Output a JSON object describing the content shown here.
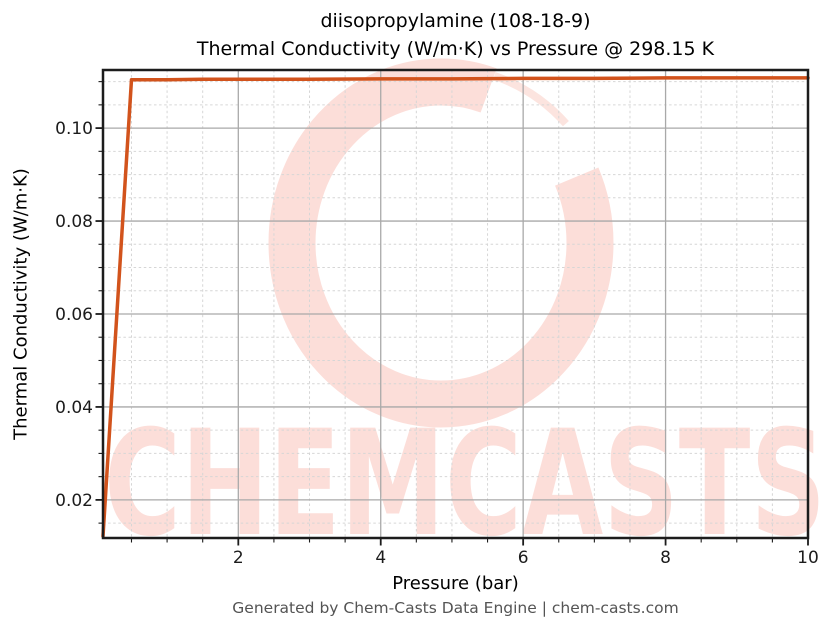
{
  "figure": {
    "title_line1": "diisopropylamine (108-18-9)",
    "title_line2": "Thermal Conductivity (W/m·K) vs Pressure @ 298.15 K",
    "watermark_text": "CHEMCASTS",
    "footer": "Generated by Chem-Casts Data Engine | chem-casts.com"
  },
  "chart_data": {
    "type": "line",
    "title": "diisopropylamine (108-18-9)",
    "subtitle": "Thermal Conductivity (W/m·K) vs Pressure @ 298.15 K",
    "xlabel": "Pressure (bar)",
    "ylabel": "Thermal Conductivity (W/m·K)",
    "xlim": [
      0.1,
      10
    ],
    "ylim": [
      0.0118,
      0.1125
    ],
    "xticks": [
      2,
      4,
      6,
      8,
      10
    ],
    "xtick_labels": [
      "2",
      "4",
      "6",
      "8",
      "10"
    ],
    "yticks": [
      0.02,
      0.04,
      0.06,
      0.08,
      0.1
    ],
    "ytick_labels": [
      "0.02",
      "0.04",
      "0.06",
      "0.08",
      "0.10"
    ],
    "x_minor_step": 0.5,
    "y_minor_step": 0.005,
    "grid": "major-solid, minor-dashed",
    "legend": false,
    "series": [
      {
        "name": "Thermal Conductivity (W/m·K)",
        "color": "#d2531c",
        "x": [
          0.1,
          0.5,
          1,
          1.5,
          2,
          3,
          4,
          5,
          6,
          7,
          8,
          9,
          10
        ],
        "y": [
          0.0122,
          0.1104,
          0.1104,
          0.1105,
          0.1105,
          0.1105,
          0.1106,
          0.1106,
          0.1107,
          0.1107,
          0.1108,
          0.1108,
          0.1108
        ]
      }
    ],
    "annotations": {
      "substance": "diisopropylamine",
      "cas": "108-18-9",
      "temperature": "298.15 K"
    }
  },
  "colors": {
    "line": "#d2531c",
    "watermark": "rgba(242,118,95,0.24)",
    "watermark_tail": "rgba(242,118,95,0.20)",
    "grid_major": "#a9a9a9",
    "grid_minor": "#d6d6d6",
    "spine": "#1c1c1c",
    "tick_label": "#1c1c1c",
    "footer_text": "#545454"
  }
}
